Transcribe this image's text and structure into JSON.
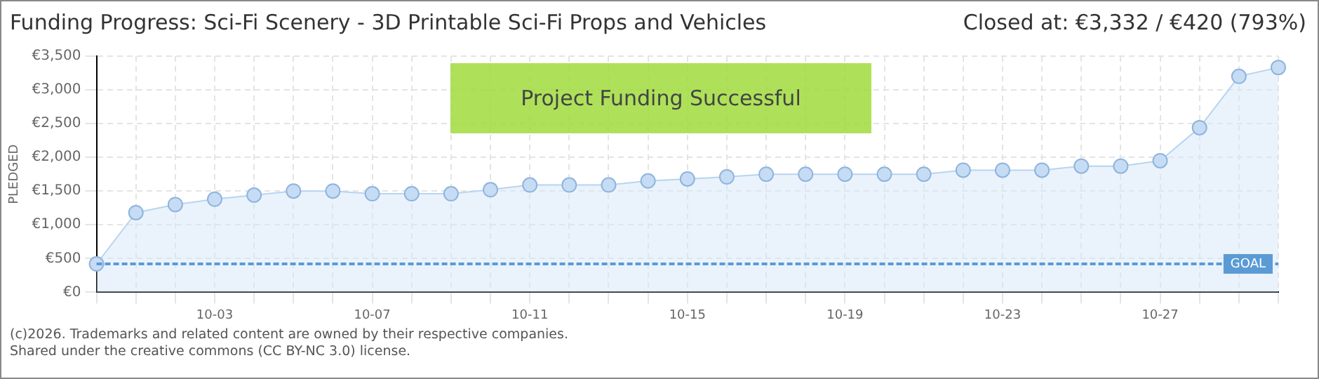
{
  "chart_data": {
    "type": "area",
    "title": "Funding Progress: Sci-Fi Scenery - 3D Printable Sci-Fi Props and Vehicles",
    "subtitle": "Closed at: €3,332 / €420 (793%)",
    "ylabel": "PLEDGED",
    "categories": [
      null,
      null,
      null,
      "10-03",
      null,
      null,
      null,
      "10-07",
      null,
      null,
      null,
      "10-11",
      null,
      null,
      null,
      "10-15",
      null,
      null,
      null,
      "10-19",
      null,
      null,
      null,
      "10-23",
      null,
      null,
      null,
      "10-27",
      null,
      null,
      null
    ],
    "series": [
      {
        "color": "#b8d4f0",
        "values": [
          420,
          1180,
          1300,
          1380,
          1440,
          1500,
          1500,
          1460,
          1460,
          1460,
          1520,
          1590,
          1590,
          1590,
          1650,
          1680,
          1710,
          1750,
          1750,
          1750,
          1750,
          1750,
          1810,
          1810,
          1810,
          1870,
          1870,
          1950,
          2440,
          3200,
          3332
        ]
      }
    ],
    "ylim": [
      0,
      3500
    ],
    "yticks": [
      {
        "value": 0,
        "label": "€0"
      },
      {
        "value": 500,
        "label": "€500"
      },
      {
        "value": 1000,
        "label": "€1,000"
      },
      {
        "value": 1500,
        "label": "€1,500"
      },
      {
        "value": 2000,
        "label": "€2,000"
      },
      {
        "value": 2500,
        "label": "€2,500"
      },
      {
        "value": 3000,
        "label": "€3,000"
      },
      {
        "value": 3500,
        "label": "€3,500"
      }
    ],
    "grid": true,
    "marker": "circle",
    "legend": false,
    "ref_lines": [
      {
        "axis": "y",
        "value": 420,
        "label": "GOAL",
        "color": "#5b9bd5",
        "line_style": "dashed"
      }
    ],
    "annotations": [
      "Project Funding Successful",
      "(c)2026. Trademarks and related content are owned by their respective companies.",
      "Shared under the creative commons (CC BY-NC 3.0) license."
    ]
  }
}
